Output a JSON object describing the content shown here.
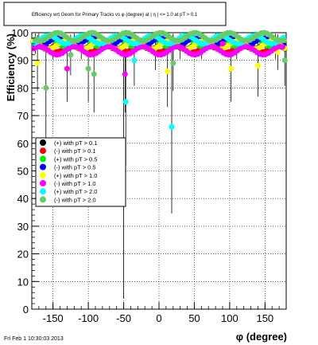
{
  "chart_data": {
    "type": "scatter",
    "title": "Efficiency wrt Geom for Primary Tracks vs φ (degree) at | η | <= 1.0 at pT > 0.1",
    "xlabel": "φ (degree)",
    "ylabel": "Efficiency (%)",
    "xlim": [
      -180,
      180
    ],
    "ylim": [
      0,
      100
    ],
    "x_ticks": [
      -150,
      -100,
      -50,
      0,
      50,
      100,
      150
    ],
    "y_ticks": [
      0,
      10,
      20,
      30,
      40,
      50,
      60,
      70,
      80,
      90,
      100
    ],
    "grid": true,
    "legend_position": "center-left",
    "series": [
      {
        "name": "(+) with pT > 0.1",
        "color": "#000000",
        "outliers": [
          [
            -175,
            96
          ],
          [
            -90,
            96
          ],
          [
            -5,
            93
          ],
          [
            20,
            95
          ],
          [
            60,
            95
          ],
          [
            165,
            95
          ]
        ],
        "band": 97
      },
      {
        "name": "(-) with pT > 0.1",
        "color": "#ff0000",
        "outliers": [
          [
            -150,
            95
          ],
          [
            -40,
            96
          ],
          [
            30,
            95
          ],
          [
            110,
            95
          ]
        ],
        "band": 96
      },
      {
        "name": "(+) with pT > 0.5",
        "color": "#00ee00",
        "outliers": [
          [
            -170,
            97
          ],
          [
            -60,
            98
          ],
          [
            80,
            97
          ]
        ],
        "band": 98
      },
      {
        "name": "(-) with pT > 0.5",
        "color": "#0000ff",
        "outliers": [
          [
            -120,
            97
          ],
          [
            0,
            98
          ],
          [
            150,
            97
          ]
        ],
        "band": 98
      },
      {
        "name": "(+) with pT > 1.0",
        "color": "#ffff00",
        "outliers": [
          [
            -172,
            89
          ],
          [
            12,
            86
          ],
          [
            102,
            87
          ],
          [
            140,
            88
          ],
          [
            168,
            93
          ]
        ],
        "band": 97
      },
      {
        "name": "(-) with pT > 1.0",
        "color": "#ff00ff",
        "outliers": [
          [
            -130,
            87
          ],
          [
            -48,
            85
          ],
          [
            -110,
            95
          ],
          [
            90,
            96
          ]
        ],
        "band": 95
      },
      {
        "name": "(+) with pT > 2.0",
        "color": "#00ffff",
        "outliers": [
          [
            -35,
            90
          ],
          [
            -47,
            75
          ],
          [
            18,
            66
          ],
          [
            -100,
            99
          ],
          [
            60,
            96
          ]
        ],
        "band": 99
      },
      {
        "name": "(-) with pT > 2.0",
        "color": "#66cc66",
        "outliers": [
          [
            -160,
            80
          ],
          [
            -100,
            87
          ],
          [
            -92,
            85
          ],
          [
            -50,
            50
          ],
          [
            -125,
            92
          ],
          [
            20,
            89
          ],
          [
            178,
            90
          ]
        ],
        "band": 100
      }
    ]
  },
  "footer": {
    "timestamp": "Fri Feb  1 10:30:03 2013"
  }
}
